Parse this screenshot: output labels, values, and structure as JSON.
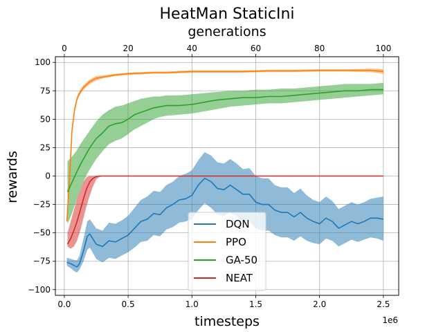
{
  "chart_data": {
    "type": "line",
    "title": "HeatMan StaticIni",
    "xlabel": "timesteps",
    "x_offset_label": "1e6",
    "ylabel": "rewards",
    "x2label": "generations",
    "xlim": [
      -0.07,
      2.62
    ],
    "ylim": [
      -105,
      105
    ],
    "x2lim": [
      -2.8,
      104.8
    ],
    "x_ticks": [
      0,
      0.5,
      1.0,
      1.5,
      2.0,
      2.5
    ],
    "x_tick_labels": [
      "0.0",
      "0.5",
      "1.0",
      "1.5",
      "2.0",
      "2.5"
    ],
    "y_ticks": [
      -100,
      -75,
      -50,
      -25,
      0,
      25,
      50,
      75,
      100
    ],
    "y_tick_labels": [
      "−100",
      "−75",
      "−50",
      "−25",
      "0",
      "25",
      "50",
      "75",
      "100"
    ],
    "x2_ticks": [
      0,
      20,
      40,
      60,
      80,
      100
    ],
    "x2_tick_labels": [
      "0",
      "20",
      "40",
      "60",
      "80",
      "100"
    ],
    "grid": true,
    "legend_position": "lower-center",
    "series": [
      {
        "name": "DQN",
        "color": "#1f77b4",
        "x": [
          0.02,
          0.05,
          0.08,
          0.1,
          0.12,
          0.15,
          0.18,
          0.2,
          0.25,
          0.3,
          0.35,
          0.4,
          0.45,
          0.5,
          0.55,
          0.6,
          0.65,
          0.7,
          0.75,
          0.8,
          0.85,
          0.9,
          0.95,
          1.0,
          1.05,
          1.1,
          1.15,
          1.2,
          1.25,
          1.3,
          1.35,
          1.4,
          1.45,
          1.5,
          1.55,
          1.6,
          1.65,
          1.7,
          1.75,
          1.8,
          1.85,
          1.9,
          1.95,
          2.0,
          2.05,
          2.1,
          2.15,
          2.2,
          2.25,
          2.3,
          2.35,
          2.4,
          2.45,
          2.5
        ],
        "y": [
          -76,
          -77,
          -79,
          -80,
          -77,
          -66,
          -53,
          -51,
          -60,
          -62,
          -57,
          -58,
          -55,
          -52,
          -46,
          -40,
          -38,
          -33,
          -34,
          -28,
          -25,
          -21,
          -20,
          -17,
          -8,
          -2,
          -5,
          -11,
          -12,
          -8,
          -12,
          -16,
          -16,
          -23,
          -25,
          -25,
          -30,
          -32,
          -32,
          -36,
          -32,
          -37,
          -40,
          -42,
          -37,
          -40,
          -46,
          -43,
          -40,
          -42,
          -40,
          -37,
          -37,
          -38
        ],
        "lower": [
          -79,
          -81,
          -84,
          -85,
          -82,
          -75,
          -65,
          -63,
          -73,
          -76,
          -72,
          -73,
          -70,
          -67,
          -63,
          -58,
          -57,
          -52,
          -53,
          -47,
          -45,
          -41,
          -40,
          -38,
          -30,
          -24,
          -28,
          -34,
          -35,
          -32,
          -35,
          -39,
          -40,
          -46,
          -48,
          -48,
          -52,
          -54,
          -54,
          -57,
          -53,
          -57,
          -59,
          -60,
          -55,
          -57,
          -62,
          -59,
          -56,
          -58,
          -56,
          -54,
          -55,
          -57
        ],
        "upper": [
          -72,
          -73,
          -74,
          -74,
          -70,
          -55,
          -40,
          -38,
          -46,
          -48,
          -41,
          -42,
          -39,
          -35,
          -28,
          -21,
          -18,
          -13,
          -14,
          -8,
          -5,
          0,
          2,
          5,
          14,
          21,
          18,
          12,
          11,
          15,
          11,
          6,
          7,
          0,
          -2,
          -2,
          -8,
          -10,
          -10,
          -15,
          -11,
          -17,
          -21,
          -23,
          -18,
          -22,
          -29,
          -26,
          -23,
          -25,
          -23,
          -20,
          -19,
          -18
        ]
      },
      {
        "name": "PPO",
        "color": "#ff7f0e",
        "x": [
          0.02,
          0.04,
          0.06,
          0.08,
          0.1,
          0.12,
          0.15,
          0.2,
          0.25,
          0.3,
          0.4,
          0.5,
          0.6,
          0.7,
          0.8,
          0.9,
          1.0,
          1.2,
          1.4,
          1.6,
          1.8,
          2.0,
          2.2,
          2.4,
          2.5
        ],
        "y": [
          -40,
          -5,
          40,
          58,
          68,
          73,
          78,
          83,
          86,
          87,
          89,
          90,
          90.5,
          91,
          91,
          91.5,
          92,
          92,
          92,
          92.5,
          92.5,
          93,
          93,
          93,
          92
        ],
        "lower": [
          -42,
          -8,
          36,
          55,
          66,
          71,
          76,
          81,
          84,
          86,
          88,
          89,
          89.5,
          90,
          90,
          90.5,
          91,
          91,
          91,
          91.5,
          91.5,
          92,
          92,
          91.5,
          90
        ],
        "upper": [
          -38,
          -2,
          44,
          61,
          70,
          75,
          80,
          85,
          88,
          88.5,
          90,
          91,
          91.5,
          92,
          92,
          92.5,
          93,
          93,
          93,
          93.5,
          93.5,
          94,
          94,
          94.5,
          94
        ]
      },
      {
        "name": "GA-50",
        "color": "#2ca02c",
        "x": [
          0.025,
          0.05,
          0.075,
          0.1,
          0.125,
          0.15,
          0.175,
          0.2,
          0.25,
          0.3,
          0.35,
          0.4,
          0.45,
          0.5,
          0.55,
          0.6,
          0.65,
          0.7,
          0.75,
          0.8,
          0.9,
          1.0,
          1.1,
          1.2,
          1.3,
          1.4,
          1.5,
          1.6,
          1.7,
          1.8,
          1.9,
          2.0,
          2.1,
          2.2,
          2.3,
          2.4,
          2.5
        ],
        "y": [
          -14,
          -8,
          -2,
          4,
          10,
          15,
          20,
          25,
          33,
          38,
          44,
          46,
          47,
          50,
          54,
          56,
          58,
          60,
          61,
          62,
          62,
          63,
          65,
          67,
          68,
          69,
          69,
          70,
          70,
          71,
          72,
          73,
          74,
          75,
          75,
          76,
          76
        ],
        "lower": [
          -42,
          -36,
          -28,
          -20,
          -12,
          -5,
          1,
          6,
          15,
          22,
          28,
          31,
          33,
          37,
          41,
          44,
          47,
          50,
          52,
          53,
          54,
          55,
          57,
          59,
          61,
          62,
          63,
          64,
          64,
          65,
          66,
          67,
          68,
          69,
          70,
          71,
          72
        ],
        "upper": [
          13,
          16,
          19,
          23,
          28,
          32,
          36,
          40,
          48,
          54,
          58,
          61,
          62,
          64,
          66,
          68,
          69,
          70,
          70,
          71,
          71,
          72,
          73,
          74,
          75,
          75,
          76,
          76,
          77,
          77,
          78,
          79,
          80,
          81,
          81,
          81,
          82
        ]
      },
      {
        "name": "NEAT",
        "color": "#d62728",
        "x": [
          0.025,
          0.05,
          0.075,
          0.1,
          0.125,
          0.15,
          0.175,
          0.2,
          0.225,
          0.25,
          0.275,
          0.3,
          0.4,
          0.6,
          0.8,
          1.0,
          1.5,
          2.0,
          2.5
        ],
        "y": [
          -60,
          -55,
          -48,
          -40,
          -30,
          -20,
          -11,
          -5,
          -2,
          -0.5,
          0,
          0,
          0,
          0,
          0,
          0,
          0,
          0,
          0
        ],
        "lower": [
          -62,
          -64,
          -62,
          -57,
          -48,
          -37,
          -26,
          -17,
          -9,
          -3,
          -1,
          0,
          0,
          0,
          0,
          0,
          0,
          0,
          0
        ],
        "upper": [
          -50,
          -40,
          -30,
          -20,
          -12,
          -5,
          -1,
          0,
          0,
          0,
          0,
          0,
          0,
          0,
          0,
          0,
          0,
          0,
          0
        ]
      }
    ]
  }
}
